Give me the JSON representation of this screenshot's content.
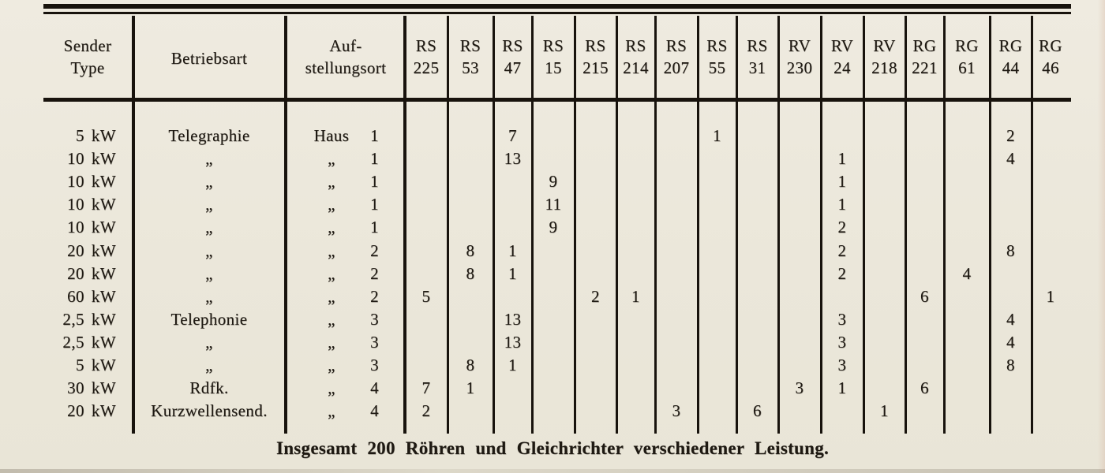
{
  "colors": {
    "paper": "#ece8dc",
    "ink": "#1e1912",
    "rule": "#18130d"
  },
  "table": {
    "header": {
      "sender": {
        "line1": "Sender",
        "line2": "Type"
      },
      "betriebsart": "Betriebsart",
      "aufstellungsort": {
        "line1": "Auf-",
        "line2": "stellungsort"
      },
      "tube_columns": [
        {
          "series": "RS",
          "number": "225"
        },
        {
          "series": "RS",
          "number": "53"
        },
        {
          "series": "RS",
          "number": "47"
        },
        {
          "series": "RS",
          "number": "15"
        },
        {
          "series": "RS",
          "number": "215"
        },
        {
          "series": "RS",
          "number": "214"
        },
        {
          "series": "RS",
          "number": "207"
        },
        {
          "series": "RS",
          "number": "55"
        },
        {
          "series": "RS",
          "number": "31"
        },
        {
          "series": "RV",
          "number": "230"
        },
        {
          "series": "RV",
          "number": "24"
        },
        {
          "series": "RV",
          "number": "218"
        },
        {
          "series": "RG",
          "number": "221"
        },
        {
          "series": "RG",
          "number": "61"
        },
        {
          "series": "RG",
          "number": "44"
        },
        {
          "series": "RG",
          "number": "46"
        }
      ]
    },
    "rows": [
      {
        "sender_value": "5",
        "sender_unit": "kW",
        "betriebsart": "Telegraphie",
        "ort_place": "Haus",
        "ort_number": "1",
        "counts": [
          "",
          "",
          "7",
          "",
          "",
          "",
          "",
          "1",
          "",
          "",
          "",
          "",
          "",
          "",
          "2",
          ""
        ]
      },
      {
        "sender_value": "10",
        "sender_unit": "kW",
        "betriebsart": "„",
        "ort_place": "„",
        "ort_number": "1",
        "counts": [
          "",
          "",
          "13",
          "",
          "",
          "",
          "",
          "",
          "",
          "",
          "1",
          "",
          "",
          "",
          "4",
          ""
        ]
      },
      {
        "sender_value": "10",
        "sender_unit": "kW",
        "betriebsart": "„",
        "ort_place": "„",
        "ort_number": "1",
        "counts": [
          "",
          "",
          "",
          "9",
          "",
          "",
          "",
          "",
          "",
          "",
          "1",
          "",
          "",
          "",
          "",
          ""
        ]
      },
      {
        "sender_value": "10",
        "sender_unit": "kW",
        "betriebsart": "„",
        "ort_place": "„",
        "ort_number": "1",
        "counts": [
          "",
          "",
          "",
          "11",
          "",
          "",
          "",
          "",
          "",
          "",
          "1",
          "",
          "",
          "",
          "",
          ""
        ]
      },
      {
        "sender_value": "10",
        "sender_unit": "kW",
        "betriebsart": "„",
        "ort_place": "„",
        "ort_number": "1",
        "counts": [
          "",
          "",
          "",
          "9",
          "",
          "",
          "",
          "",
          "",
          "",
          "2",
          "",
          "",
          "",
          "",
          ""
        ]
      },
      {
        "sender_value": "20",
        "sender_unit": "kW",
        "betriebsart": "„",
        "ort_place": "„",
        "ort_number": "2",
        "counts": [
          "",
          "8",
          "1",
          "",
          "",
          "",
          "",
          "",
          "",
          "",
          "2",
          "",
          "",
          "",
          "8",
          ""
        ]
      },
      {
        "sender_value": "20",
        "sender_unit": "kW",
        "betriebsart": "„",
        "ort_place": "„",
        "ort_number": "2",
        "counts": [
          "",
          "8",
          "1",
          "",
          "",
          "",
          "",
          "",
          "",
          "",
          "2",
          "",
          "",
          "4",
          "",
          ""
        ]
      },
      {
        "sender_value": "60",
        "sender_unit": "kW",
        "betriebsart": "„",
        "ort_place": "„",
        "ort_number": "2",
        "counts": [
          "5",
          "",
          "",
          "",
          "2",
          "1",
          "",
          "",
          "",
          "",
          "",
          "",
          "6",
          "",
          "",
          "1"
        ]
      },
      {
        "sender_value": "2,5",
        "sender_unit": "kW",
        "betriebsart": "Telephonie",
        "ort_place": "„",
        "ort_number": "3",
        "counts": [
          "",
          "",
          "13",
          "",
          "",
          "",
          "",
          "",
          "",
          "",
          "3",
          "",
          "",
          "",
          "4",
          ""
        ]
      },
      {
        "sender_value": "2,5",
        "sender_unit": "kW",
        "betriebsart": "„",
        "ort_place": "„",
        "ort_number": "3",
        "counts": [
          "",
          "",
          "13",
          "",
          "",
          "",
          "",
          "",
          "",
          "",
          "3",
          "",
          "",
          "",
          "4",
          ""
        ]
      },
      {
        "sender_value": "5",
        "sender_unit": "kW",
        "betriebsart": "„",
        "ort_place": "„",
        "ort_number": "3",
        "counts": [
          "",
          "8",
          "1",
          "",
          "",
          "",
          "",
          "",
          "",
          "",
          "3",
          "",
          "",
          "",
          "8",
          ""
        ]
      },
      {
        "sender_value": "30",
        "sender_unit": "kW",
        "betriebsart": "Rdfk.",
        "ort_place": "„",
        "ort_number": "4",
        "counts": [
          "7",
          "1",
          "",
          "",
          "",
          "",
          "",
          "",
          "",
          "3",
          "1",
          "",
          "6",
          "",
          "",
          ""
        ]
      },
      {
        "sender_value": "20",
        "sender_unit": "kW",
        "betriebsart": "Kurzwellensend.",
        "ort_place": "„",
        "ort_number": "4",
        "counts": [
          "2",
          "",
          "",
          "",
          "",
          "",
          "3",
          "",
          "6",
          "",
          "",
          "1",
          "",
          "",
          "",
          ""
        ]
      }
    ],
    "footer": "Insgesamt 200 Röhren und Gleichrichter verschiedener Leistung."
  }
}
